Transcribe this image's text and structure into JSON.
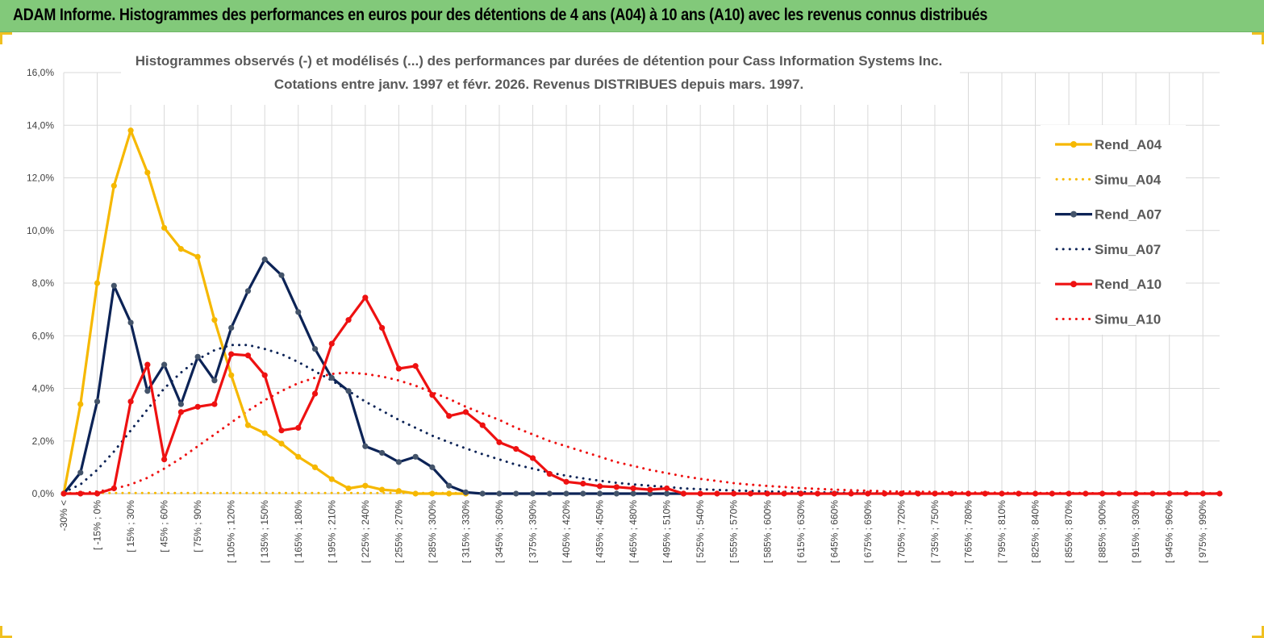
{
  "banner": {
    "title": "ADAM Informe. Histogrammes des performances en euros pour des détentions de 4 ans (A04) à 10 ans (A10) avec les revenus connus distribués"
  },
  "colors": {
    "banner_bg": "#82c97a",
    "a04": "#f6b800",
    "a07": "#0c2356",
    "a10": "#ee1111",
    "grid": "#d9d9d9"
  },
  "chart_data": {
    "type": "line",
    "title_line1": "Histogrammes observés (-) et modélisés (...) des performances par durées de détention pour Cass Information Systems Inc.",
    "title_line2": "Cotations entre janv. 1997 et févr. 2026. Revenus DISTRIBUES depuis mars. 1997.",
    "xlabel": "",
    "ylabel": "",
    "ylim": [
      0,
      16
    ],
    "yticks": [
      "0,0%",
      "2,0%",
      "4,0%",
      "6,0%",
      "8,0%",
      "10,0%",
      "12,0%",
      "14,0%",
      "16,0%"
    ],
    "grid": true,
    "legend_position": "right",
    "x_labels_shown": [
      "-30% <",
      "[ -15% ; 0%",
      "[ 15% ; 30%",
      "[ 45% ; 60%",
      "[ 75% ; 90%",
      "[ 105% ; 120%",
      "[ 135% ; 150%",
      "[ 165% ; 180%",
      "[ 195% ; 210%",
      "[ 225% ; 240%",
      "[ 255% ; 270%",
      "[ 285% ; 300%",
      "[ 315% ; 330%",
      "[ 345% ; 360%",
      "[ 375% ; 390%",
      "[ 405% ; 420%",
      "[ 435% ; 450%",
      "[ 465% ; 480%",
      "[ 495% ; 510%",
      "[ 525% ; 540%",
      "[ 555% ; 570%",
      "[ 585% ; 600%",
      "[ 615% ; 630%",
      "[ 645% ; 660%",
      "[ 675% ; 690%",
      "[ 705% ; 720%",
      "[ 735% ; 750%",
      "[ 765% ; 780%",
      "[ 795% ; 810%",
      "[ 825% ; 840%",
      "[ 855% ; 870%",
      "[ 885% ; 900%",
      "[ 915% ; 930%",
      "[ 945% ; 960%",
      "[ 975% ; 990%"
    ],
    "n_points": 70,
    "series": [
      {
        "name": "Rend_A04",
        "style": "solid",
        "color": "#f6b800",
        "values": [
          0.0,
          3.4,
          8.0,
          11.7,
          13.8,
          12.2,
          10.1,
          9.3,
          9.0,
          6.6,
          4.5,
          2.6,
          2.3,
          1.9,
          1.4,
          1.0,
          0.55,
          0.2,
          0.3,
          0.15,
          0.1,
          0.0,
          0.0,
          0.0,
          0.0
        ]
      },
      {
        "name": "Simu_A04",
        "style": "dotted",
        "color": "#f6b800",
        "values": [
          0.02,
          0.02,
          0.02,
          0.02,
          0.02,
          0.02,
          0.02,
          0.02,
          0.02,
          0.02,
          0.02,
          0.02,
          0.02,
          0.02,
          0.02,
          0.02,
          0.02,
          0.02,
          0.02,
          0.02,
          0.02,
          0.02,
          0.02,
          0.02,
          0.02
        ]
      },
      {
        "name": "Rend_A07",
        "style": "solid",
        "color": "#0c2356",
        "values": [
          0.0,
          0.8,
          3.5,
          7.9,
          6.5,
          3.9,
          4.9,
          3.4,
          5.2,
          4.3,
          6.3,
          7.7,
          8.9,
          8.3,
          6.9,
          5.5,
          4.4,
          3.9,
          1.8,
          1.55,
          1.2,
          1.4,
          1.0,
          0.3,
          0.05,
          0.0,
          0.0,
          0.0,
          0.0,
          0.0,
          0.0,
          0.0,
          0.0,
          0.0,
          0.0,
          0.0,
          0.0,
          0.0
        ]
      },
      {
        "name": "Simu_A07",
        "style": "dotted",
        "color": "#0c2356",
        "values": [
          0.05,
          0.35,
          0.9,
          1.6,
          2.4,
          3.2,
          4.0,
          4.6,
          5.1,
          5.45,
          5.65,
          5.65,
          5.5,
          5.3,
          5.0,
          4.65,
          4.3,
          3.9,
          3.5,
          3.15,
          2.8,
          2.5,
          2.2,
          1.95,
          1.72,
          1.5,
          1.3,
          1.1,
          0.95,
          0.8,
          0.68,
          0.58,
          0.49,
          0.41,
          0.35,
          0.3,
          0.25,
          0.2,
          0.17,
          0.14,
          0.12,
          0.1,
          0.08,
          0.07,
          0.06,
          0.05,
          0.04,
          0.03,
          0.03,
          0.02,
          0.02,
          0.02,
          0.01,
          0.01,
          0.01,
          0.01,
          0.01,
          0.01,
          0.01,
          0.01,
          0.01,
          0.01,
          0.01,
          0.01,
          0.01,
          0.01,
          0.01,
          0.01,
          0.01,
          0.01
        ]
      },
      {
        "name": "Rend_A10",
        "style": "solid",
        "color": "#ee1111",
        "values": [
          0.0,
          0.0,
          0.0,
          0.2,
          3.5,
          4.9,
          1.3,
          3.1,
          3.3,
          3.4,
          5.3,
          5.25,
          4.5,
          2.4,
          2.5,
          3.8,
          5.7,
          6.6,
          7.45,
          6.3,
          4.75,
          4.85,
          3.75,
          2.95,
          3.1,
          2.6,
          1.95,
          1.7,
          1.35,
          0.75,
          0.45,
          0.38,
          0.28,
          0.25,
          0.2,
          0.15,
          0.2,
          0.0,
          0.0,
          0.0,
          0.0,
          0.0,
          0.0,
          0.0,
          0.0,
          0.0,
          0.0,
          0.0,
          0.0,
          0.0,
          0.0,
          0.0,
          0.0,
          0.0,
          0.0,
          0.0,
          0.0,
          0.0,
          0.0,
          0.0,
          0.0,
          0.0,
          0.0,
          0.0,
          0.0,
          0.0,
          0.0,
          0.0,
          0.0,
          0.0
        ]
      },
      {
        "name": "Simu_A10",
        "style": "dotted",
        "color": "#ee1111",
        "values": [
          0.0,
          0.02,
          0.08,
          0.18,
          0.35,
          0.6,
          0.95,
          1.35,
          1.8,
          2.25,
          2.7,
          3.15,
          3.55,
          3.9,
          4.2,
          4.4,
          4.55,
          4.6,
          4.55,
          4.45,
          4.3,
          4.1,
          3.85,
          3.6,
          3.3,
          3.05,
          2.8,
          2.5,
          2.25,
          2.0,
          1.8,
          1.6,
          1.4,
          1.2,
          1.05,
          0.9,
          0.78,
          0.66,
          0.56,
          0.48,
          0.4,
          0.34,
          0.29,
          0.25,
          0.21,
          0.18,
          0.15,
          0.13,
          0.11,
          0.09,
          0.08,
          0.07,
          0.06,
          0.05,
          0.04,
          0.04,
          0.03,
          0.03,
          0.02,
          0.02,
          0.02,
          0.02,
          0.01,
          0.01,
          0.01,
          0.01,
          0.01,
          0.01,
          0.01,
          0.01
        ]
      }
    ]
  }
}
